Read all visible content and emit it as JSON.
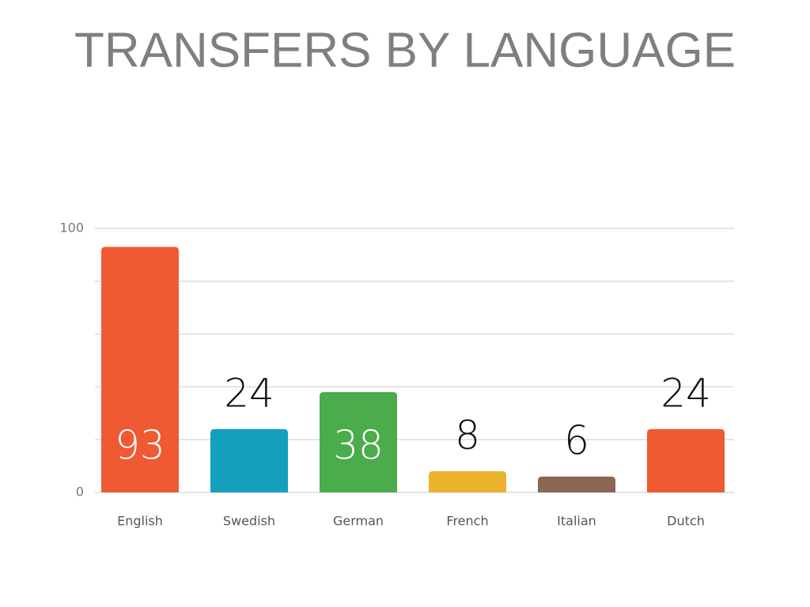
{
  "chart_data": {
    "type": "bar",
    "title": "TRANSFERS BY LANGUAGE",
    "categories": [
      "English",
      "Swedish",
      "German",
      "French",
      "Italian",
      "Dutch"
    ],
    "values": [
      93,
      24,
      38,
      8,
      6,
      24
    ],
    "colors": [
      "#f05a32",
      "#149fbc",
      "#4aac4a",
      "#ebb22b",
      "#8b6650",
      "#f05a32"
    ],
    "ylim": [
      0,
      100
    ],
    "yticks": [
      0,
      100
    ],
    "grid_lines": [
      0,
      20,
      40,
      60,
      80,
      100
    ],
    "grid": true
  }
}
